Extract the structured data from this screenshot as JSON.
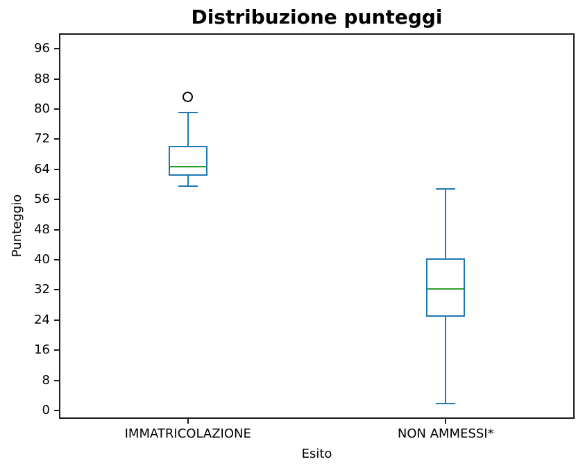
{
  "chart_data": {
    "type": "boxplot",
    "title": "Distribuzione punteggi",
    "xlabel": "Esito",
    "ylabel": "Punteggio",
    "categories": [
      "IMMATRICOLAZIONE",
      "NON AMMESSI*"
    ],
    "yticks": [
      0,
      8,
      16,
      24,
      32,
      40,
      48,
      56,
      64,
      72,
      80,
      88,
      96
    ],
    "ylim": [
      -2.2,
      100.1
    ],
    "grid": false,
    "legend": "none",
    "series": [
      {
        "name": "IMMATRICOLAZIONE",
        "whislo": 59.5,
        "q1": 62.3,
        "med": 64.7,
        "q3": 70.2,
        "whishi": 79.0,
        "fliers": [
          83.2
        ]
      },
      {
        "name": "NON AMMESSI*",
        "whislo": 1.9,
        "q1": 24.9,
        "med": 32.3,
        "q3": 40.4,
        "whishi": 58.9,
        "fliers": []
      }
    ],
    "colors": {
      "box": "#1f77b4",
      "median": "#2ca02c",
      "flier_edge": "#000000",
      "frame": "#1a1a1a",
      "text": "#000000"
    }
  }
}
